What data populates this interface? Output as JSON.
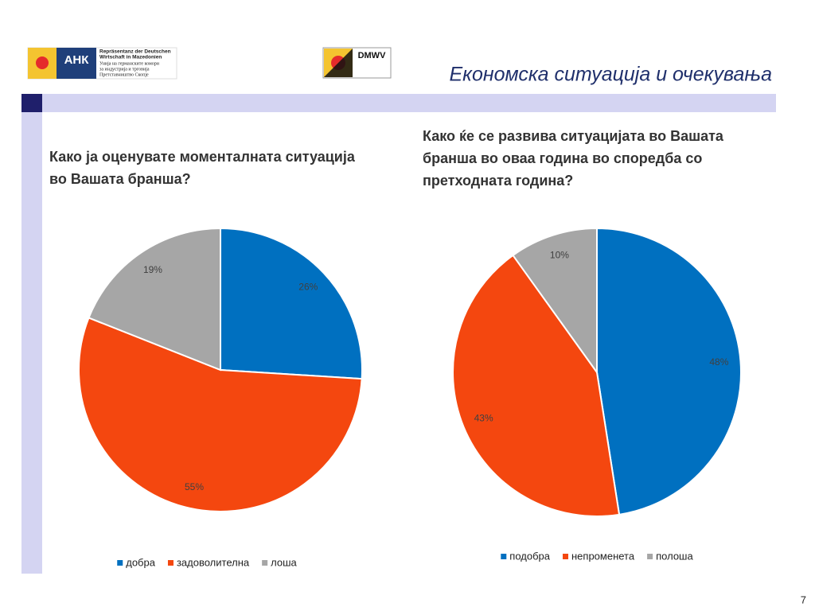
{
  "slide": {
    "title": "Економска ситуација и очекувања",
    "page_number": "7",
    "logo_ahk": {
      "mark": "АНК",
      "line1": "Repräsentanz der Deutschen",
      "line2": "Wirtschaft in Mazedonien",
      "line3": "Унија на германските комори",
      "line4": "за индустрија и трговија",
      "line5": "Претставништво Скопје"
    },
    "logo_dmwv": "DMWV"
  },
  "chart_data": [
    {
      "type": "pie",
      "title": [
        "Како ја оценувате моменталната ситуација",
        "во Вашата бранша?"
      ],
      "categories": [
        "добра",
        "задоволителна",
        "лоша"
      ],
      "values": [
        26,
        55,
        19
      ],
      "value_labels": [
        "26%",
        "55%",
        "19%"
      ],
      "colors": [
        "#0070c0",
        "#f4470f",
        "#a6a6a6"
      ],
      "legend": "bottom"
    },
    {
      "type": "pie",
      "title": [
        "Како ќе се развива ситуацијата во Вашата",
        "бранша во оваа година во споредба со",
        "претходната година?"
      ],
      "categories": [
        "подобра",
        "непроменета",
        "полоша"
      ],
      "values": [
        48,
        43,
        10
      ],
      "value_labels": [
        "48%",
        "43%",
        "10%"
      ],
      "colors": [
        "#0070c0",
        "#f4470f",
        "#a6a6a6"
      ],
      "legend": "bottom"
    }
  ]
}
